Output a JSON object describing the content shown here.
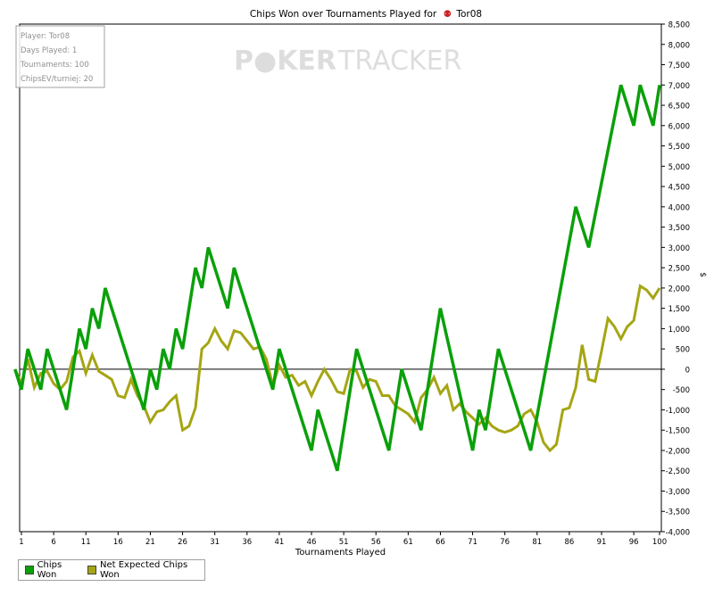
{
  "chart_data": {
    "type": "line",
    "title": "Chips Won over Tournaments Played for",
    "title_player": "Tor08",
    "watermark": {
      "left": "P",
      "mid": "KER",
      "right": "TRACKER"
    },
    "xlabel": "Tournaments Played",
    "ylabel": "$",
    "xlim": [
      1,
      100
    ],
    "ylim": [
      -4000,
      8500
    ],
    "yticks": [
      -4000,
      -3500,
      -3000,
      -2500,
      -2000,
      -1500,
      -1000,
      -500,
      0,
      500,
      1000,
      1500,
      2000,
      2500,
      3000,
      3500,
      4000,
      4500,
      5000,
      5500,
      6000,
      6500,
      7000,
      7500,
      8000,
      8500
    ],
    "ytick_labels": [
      "-4,000",
      "-3,500",
      "-3,000",
      "-2,500",
      "-2,000",
      "-1,500",
      "-1,000",
      "-500",
      "0",
      "500",
      "1,000",
      "1,500",
      "2,000",
      "2,500",
      "3,000",
      "3,500",
      "4,000",
      "4,500",
      "5,000",
      "5,500",
      "6,000",
      "6,500",
      "7,000",
      "7,500",
      "8,000",
      "8,500"
    ],
    "xticks": [
      1,
      6,
      11,
      16,
      21,
      26,
      31,
      36,
      41,
      46,
      51,
      56,
      61,
      66,
      71,
      76,
      81,
      86,
      91,
      96,
      100
    ],
    "xtick_labels": [
      "1",
      "6",
      "11",
      "16",
      "21",
      "26",
      "31",
      "36",
      "41",
      "46",
      "51",
      "56",
      "61",
      "66",
      "71",
      "76",
      "81",
      "86",
      "91",
      "96",
      "100"
    ],
    "grid": false,
    "legend_position": "bottom-left",
    "info_box": {
      "lines": [
        "Player: Tor08",
        "Days Played: 1",
        "Tournaments: 100",
        "ChipsEV/turniej: 20"
      ]
    },
    "series": [
      {
        "name": "Chips Won",
        "color": "#0aa00a",
        "points": [
          [
            0,
            0
          ],
          [
            1,
            -500
          ],
          [
            2,
            500
          ],
          [
            4,
            -500
          ],
          [
            5,
            500
          ],
          [
            7,
            -500
          ],
          [
            8,
            -1000
          ],
          [
            10,
            1000
          ],
          [
            11,
            500
          ],
          [
            12,
            1500
          ],
          [
            13,
            1000
          ],
          [
            14,
            2000
          ],
          [
            20,
            -1000
          ],
          [
            21,
            0
          ],
          [
            22,
            -500
          ],
          [
            23,
            500
          ],
          [
            24,
            0
          ],
          [
            25,
            1000
          ],
          [
            26,
            500
          ],
          [
            28,
            2500
          ],
          [
            29,
            2000
          ],
          [
            30,
            3000
          ],
          [
            33,
            1500
          ],
          [
            34,
            2500
          ],
          [
            40,
            -500
          ],
          [
            41,
            500
          ],
          [
            46,
            -2000
          ],
          [
            47,
            -1000
          ],
          [
            50,
            -2500
          ],
          [
            53,
            500
          ],
          [
            58,
            -2000
          ],
          [
            60,
            0
          ],
          [
            63,
            -1500
          ],
          [
            66,
            1500
          ],
          [
            71,
            -2000
          ],
          [
            72,
            -1000
          ],
          [
            73,
            -1500
          ],
          [
            75,
            500
          ],
          [
            80,
            -2000
          ],
          [
            87,
            4000
          ],
          [
            89,
            3000
          ],
          [
            94,
            7000
          ],
          [
            96,
            6000
          ],
          [
            97,
            7000
          ],
          [
            99,
            6000
          ],
          [
            100,
            7000
          ]
        ]
      },
      {
        "name": "Net Expected Chips Won",
        "color": "#a5a514",
        "points": [
          [
            0,
            0
          ],
          [
            1,
            -350
          ],
          [
            2,
            250
          ],
          [
            3,
            -450
          ],
          [
            4,
            -100
          ],
          [
            5,
            -50
          ],
          [
            6,
            -350
          ],
          [
            7,
            -500
          ],
          [
            8,
            -300
          ],
          [
            9,
            300
          ],
          [
            10,
            450
          ],
          [
            11,
            -100
          ],
          [
            12,
            350
          ],
          [
            13,
            -50
          ],
          [
            14,
            -150
          ],
          [
            15,
            -250
          ],
          [
            16,
            -650
          ],
          [
            17,
            -700
          ],
          [
            18,
            -250
          ],
          [
            19,
            -650
          ],
          [
            20,
            -900
          ],
          [
            21,
            -1300
          ],
          [
            22,
            -1050
          ],
          [
            23,
            -1000
          ],
          [
            24,
            -800
          ],
          [
            25,
            -650
          ],
          [
            26,
            -1500
          ],
          [
            27,
            -1400
          ],
          [
            28,
            -950
          ],
          [
            29,
            500
          ],
          [
            30,
            650
          ],
          [
            31,
            1000
          ],
          [
            32,
            700
          ],
          [
            33,
            500
          ],
          [
            34,
            950
          ],
          [
            35,
            900
          ],
          [
            36,
            700
          ],
          [
            37,
            500
          ],
          [
            38,
            550
          ],
          [
            39,
            250
          ],
          [
            40,
            -400
          ],
          [
            41,
            100
          ],
          [
            42,
            -200
          ],
          [
            43,
            -150
          ],
          [
            44,
            -400
          ],
          [
            45,
            -300
          ],
          [
            46,
            -650
          ],
          [
            47,
            -300
          ],
          [
            48,
            0
          ],
          [
            49,
            -250
          ],
          [
            50,
            -550
          ],
          [
            51,
            -600
          ],
          [
            52,
            0
          ],
          [
            53,
            -50
          ],
          [
            54,
            -450
          ],
          [
            55,
            -250
          ],
          [
            56,
            -300
          ],
          [
            57,
            -650
          ],
          [
            58,
            -650
          ],
          [
            59,
            -900
          ],
          [
            60,
            -1000
          ],
          [
            61,
            -1100
          ],
          [
            62,
            -1300
          ],
          [
            63,
            -700
          ],
          [
            64,
            -500
          ],
          [
            65,
            -200
          ],
          [
            66,
            -600
          ],
          [
            67,
            -400
          ],
          [
            68,
            -1000
          ],
          [
            69,
            -850
          ],
          [
            70,
            -1050
          ],
          [
            71,
            -1200
          ],
          [
            72,
            -1350
          ],
          [
            73,
            -1200
          ],
          [
            74,
            -1400
          ],
          [
            75,
            -1500
          ],
          [
            76,
            -1550
          ],
          [
            77,
            -1500
          ],
          [
            78,
            -1400
          ],
          [
            79,
            -1100
          ],
          [
            80,
            -1000
          ],
          [
            81,
            -1300
          ],
          [
            82,
            -1800
          ],
          [
            83,
            -2000
          ],
          [
            84,
            -1850
          ],
          [
            85,
            -1000
          ],
          [
            86,
            -950
          ],
          [
            87,
            -450
          ],
          [
            88,
            600
          ],
          [
            89,
            -250
          ],
          [
            90,
            -300
          ],
          [
            91,
            450
          ],
          [
            92,
            1250
          ],
          [
            93,
            1050
          ],
          [
            94,
            750
          ],
          [
            95,
            1050
          ],
          [
            96,
            1200
          ],
          [
            97,
            2050
          ],
          [
            98,
            1950
          ],
          [
            99,
            1750
          ],
          [
            100,
            2000
          ]
        ]
      }
    ]
  }
}
